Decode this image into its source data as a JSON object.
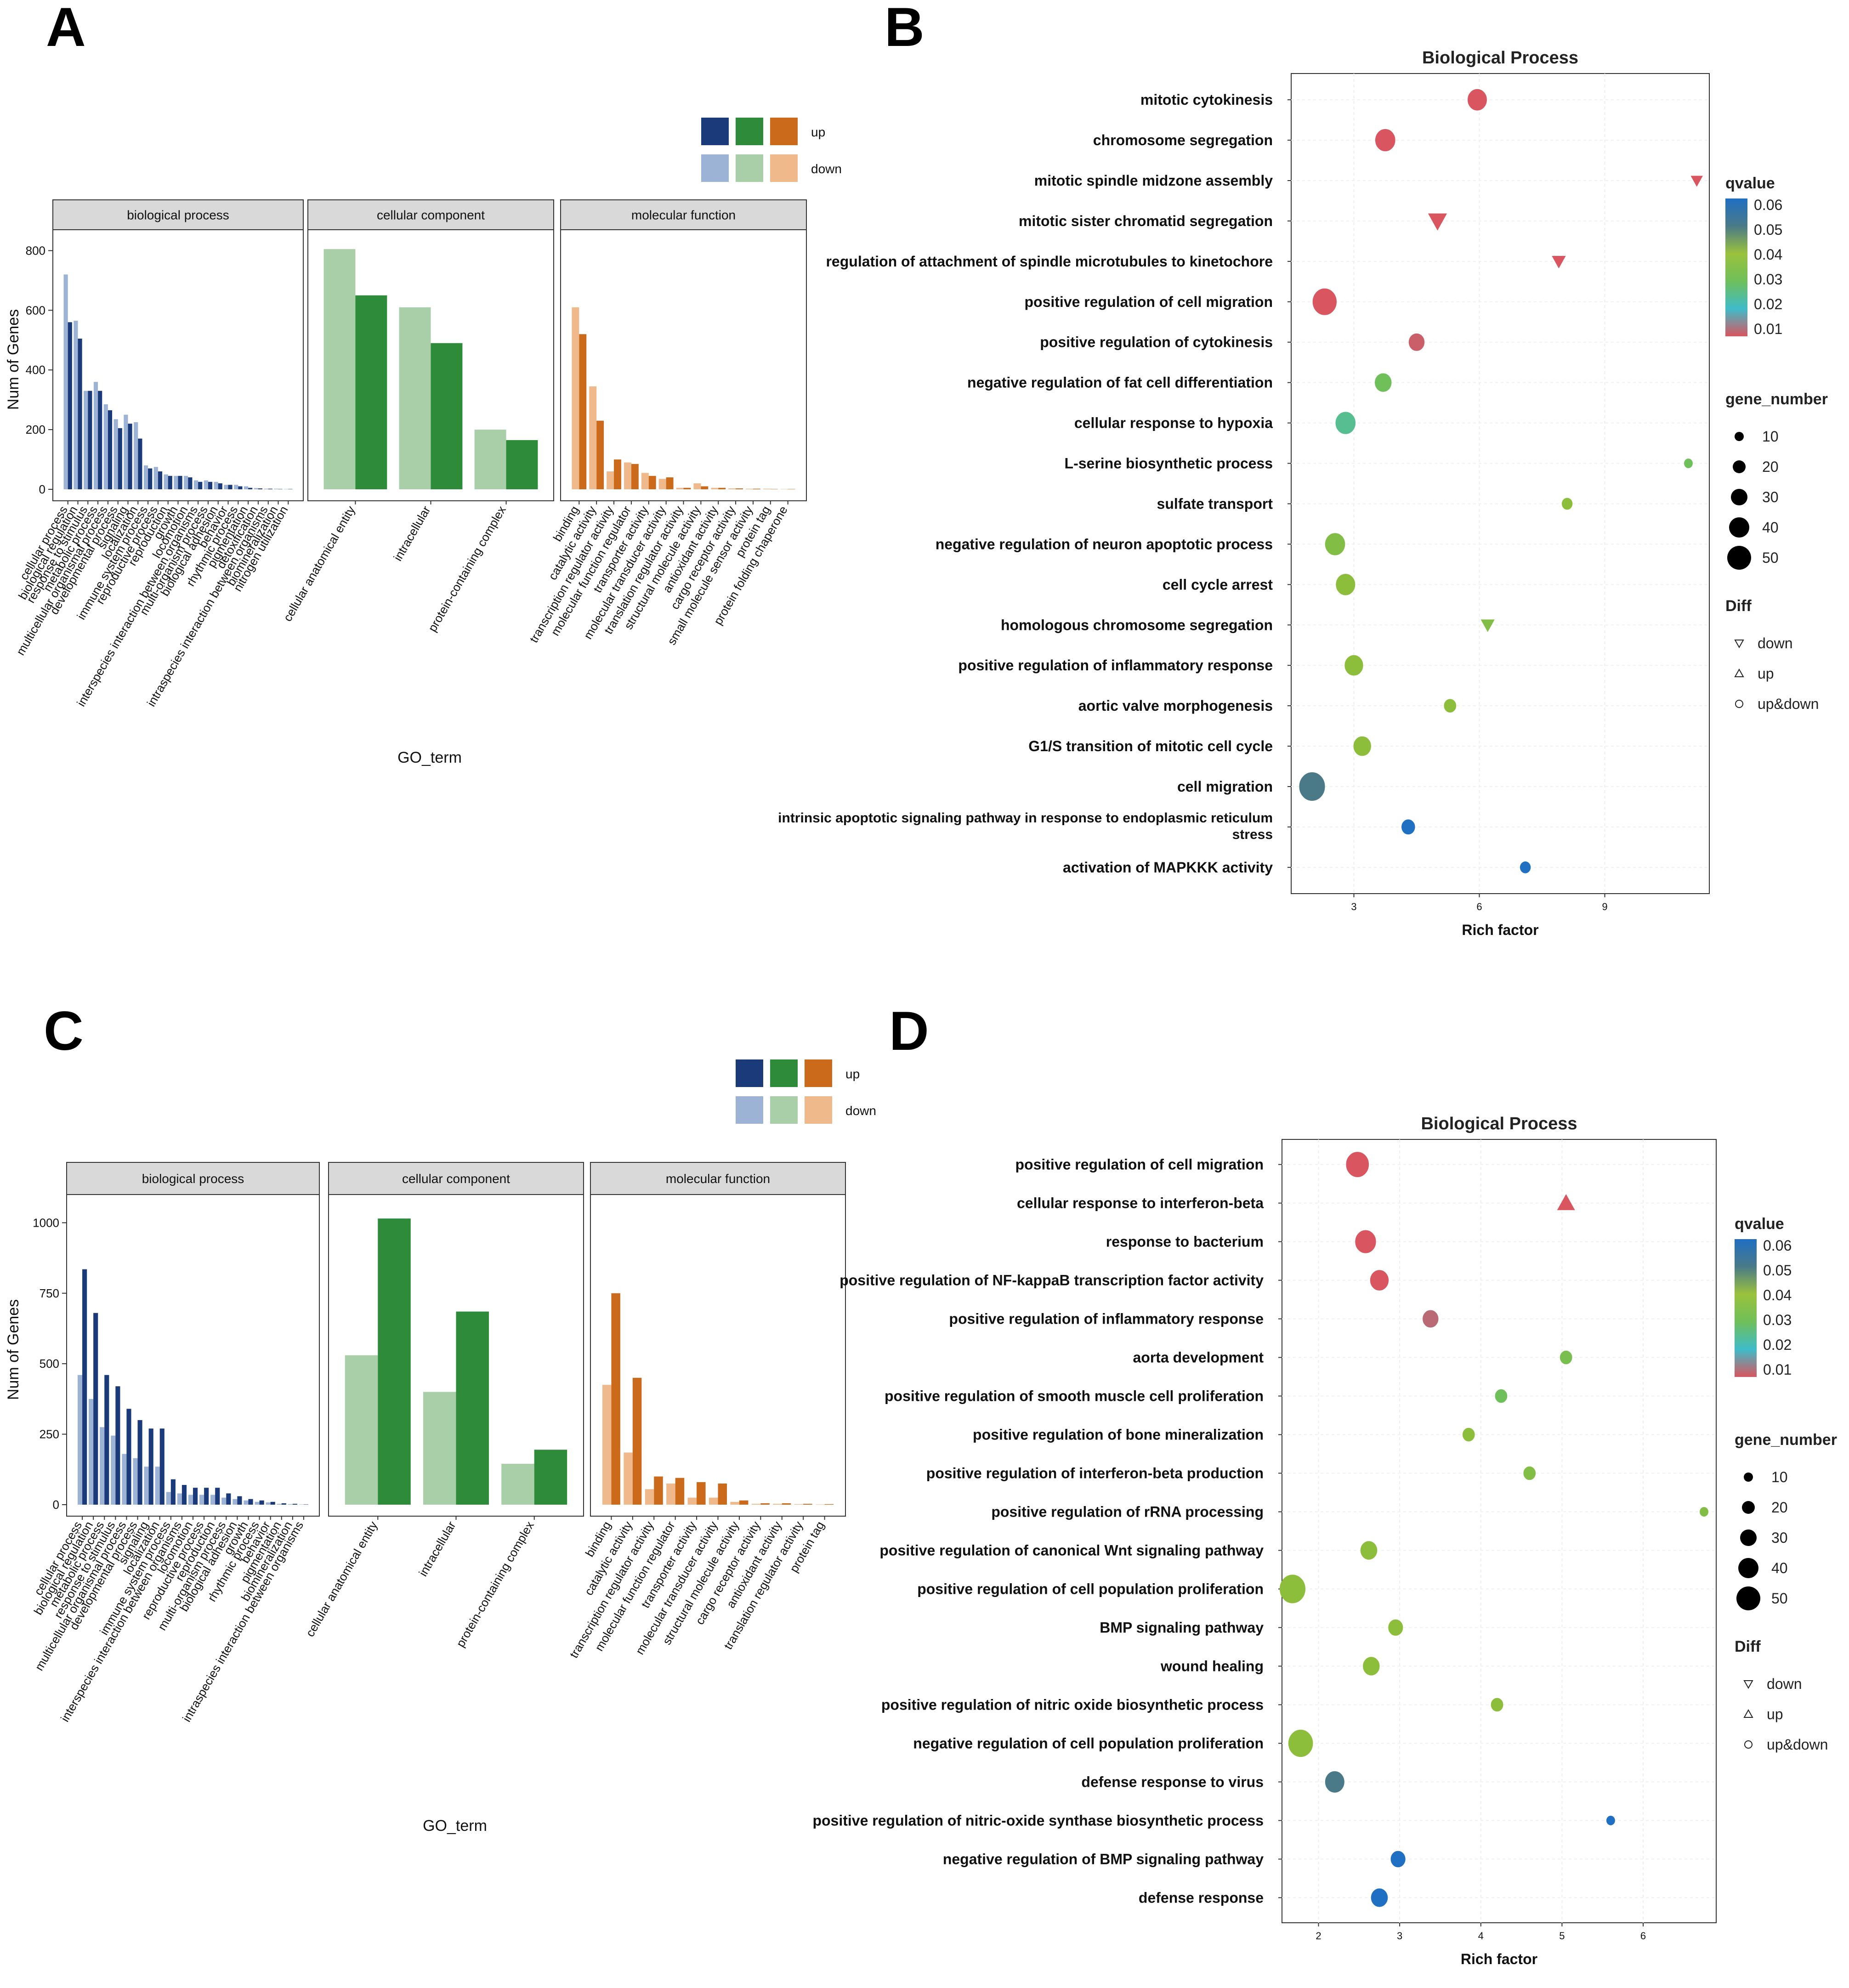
{
  "panels": {
    "A": {
      "letter": "A",
      "legend": {
        "up": "up",
        "down": "down"
      },
      "ylabel": "Num of Genes",
      "xlabel": "GO_term",
      "yticks": [
        0,
        200,
        400,
        600,
        800
      ],
      "ylim": [
        0,
        870
      ],
      "facets": [
        {
          "title": "biological process",
          "color_up": "#1a3a7a",
          "color_down": "#9db3d6",
          "categories": [
            "cellular process",
            "biological regulation",
            "response to stimulus",
            "metabolic process",
            "multicellular organismal process",
            "developmental process",
            "signaling",
            "localization",
            "immune system process",
            "reproductive process",
            "reproduction",
            "growth",
            "locomotion",
            "interspecies interaction between organisms",
            "multi-organism process",
            "biological adhesion",
            "behavior",
            "rhythmic process",
            "pigmentation",
            "detoxification",
            "intraspecies interaction between organisms",
            "biomineralization",
            "nitrogen utilization"
          ],
          "up": [
            560,
            505,
            330,
            330,
            265,
            205,
            220,
            170,
            70,
            60,
            45,
            45,
            40,
            25,
            25,
            20,
            15,
            10,
            5,
            3,
            2,
            1,
            1
          ],
          "down": [
            720,
            565,
            330,
            360,
            285,
            235,
            250,
            225,
            80,
            75,
            50,
            45,
            45,
            30,
            30,
            25,
            15,
            15,
            10,
            4,
            2,
            2,
            1
          ]
        },
        {
          "title": "cellular component",
          "color_up": "#2e8b3a",
          "color_down": "#a8cfa8",
          "categories": [
            "cellular anatomical entity",
            "intracellular",
            "protein-containing complex"
          ],
          "up": [
            650,
            490,
            165
          ],
          "down": [
            805,
            610,
            200
          ]
        },
        {
          "title": "molecular function",
          "color_up": "#cc6a1c",
          "color_down": "#f0b98c",
          "categories": [
            "binding",
            "catalytic activity",
            "transcription regulator activity",
            "molecular function regulator",
            "transporter activity",
            "molecular transducer activity",
            "translation regulator activity",
            "structural molecule activity",
            "antioxidant activity",
            "cargo receptor activity",
            "small molecule sensor activity",
            "protein tag",
            "protein folding chaperone"
          ],
          "up": [
            520,
            230,
            100,
            85,
            45,
            40,
            5,
            10,
            5,
            3,
            2,
            1,
            1
          ],
          "down": [
            610,
            345,
            60,
            90,
            55,
            35,
            5,
            20,
            5,
            3,
            2,
            2,
            1
          ]
        }
      ]
    },
    "B": {
      "letter": "B",
      "title": "Biological Process",
      "xlabel": "Rich factor",
      "xticks": [
        3,
        6,
        9
      ],
      "xlim": [
        1.5,
        11.5
      ],
      "terms": [
        {
          "label": "mitotic cytokinesis",
          "x": 5.95,
          "q": 0.005,
          "n": 20,
          "diff": "up&down"
        },
        {
          "label": "chromosome segregation",
          "x": 3.75,
          "q": 0.006,
          "n": 22,
          "diff": "up&down"
        },
        {
          "label": "mitotic spindle midzone assembly",
          "x": 11.2,
          "q": 0.008,
          "n": 4,
          "diff": "down"
        },
        {
          "label": "mitotic sister chromatid segregation",
          "x": 5.0,
          "q": 0.005,
          "n": 14,
          "diff": "down"
        },
        {
          "label": "regulation of attachment of spindle microtubules to kinetochore",
          "x": 7.9,
          "q": 0.008,
          "n": 6,
          "diff": "down"
        },
        {
          "label": "positive regulation of cell migration",
          "x": 2.3,
          "q": 0.009,
          "n": 34,
          "diff": "up&down"
        },
        {
          "label": "positive regulation of cytokinesis",
          "x": 4.5,
          "q": 0.011,
          "n": 12,
          "diff": "up&down"
        },
        {
          "label": "negative regulation of fat cell differentiation",
          "x": 3.7,
          "q": 0.03,
          "n": 14,
          "diff": "up&down"
        },
        {
          "label": "cellular response to hypoxia",
          "x": 2.8,
          "q": 0.025,
          "n": 22,
          "diff": "up&down"
        },
        {
          "label": "L-serine biosynthetic process",
          "x": 11.0,
          "q": 0.03,
          "n": 2,
          "diff": "up&down"
        },
        {
          "label": "sulfate transport",
          "x": 8.1,
          "q": 0.045,
          "n": 4,
          "diff": "up&down"
        },
        {
          "label": "negative regulation of neuron apoptotic process",
          "x": 2.55,
          "q": 0.04,
          "n": 22,
          "diff": "up&down"
        },
        {
          "label": "cell cycle arrest",
          "x": 2.8,
          "q": 0.045,
          "n": 20,
          "diff": "up&down"
        },
        {
          "label": "homologous chromosome segregation",
          "x": 6.2,
          "q": 0.04,
          "n": 6,
          "diff": "down"
        },
        {
          "label": "positive regulation of inflammatory response",
          "x": 3.0,
          "q": 0.045,
          "n": 18,
          "diff": "up&down"
        },
        {
          "label": "aortic valve morphogenesis",
          "x": 5.3,
          "q": 0.045,
          "n": 6,
          "diff": "up&down"
        },
        {
          "label": "G1/S transition of mitotic cell cycle",
          "x": 3.2,
          "q": 0.045,
          "n": 16,
          "diff": "up&down"
        },
        {
          "label": "cell migration",
          "x": 2.0,
          "q": 0.05,
          "n": 40,
          "diff": "up&down"
        },
        {
          "label": "intrinsic apoptotic signaling pathway in response to endoplasmic reticulum stress",
          "x": 4.3,
          "q": 0.06,
          "n": 8,
          "diff": "up&down"
        },
        {
          "label": "activation of MAPKKK activity",
          "x": 7.1,
          "q": 0.06,
          "n": 4,
          "diff": "up&down"
        }
      ]
    },
    "C": {
      "letter": "C",
      "legend": {
        "up": "up",
        "down": "down"
      },
      "ylabel": "Num of Genes",
      "xlabel": "GO_term",
      "yticks": [
        0,
        250,
        500,
        750,
        1000
      ],
      "ylim": [
        0,
        1100
      ],
      "facets": [
        {
          "title": "biological process",
          "color_up": "#1a3a7a",
          "color_down": "#9db3d6",
          "categories": [
            "cellular process",
            "biological regulation",
            "metabolic process",
            "response to stimulus",
            "multicellular organismal process",
            "developmental process",
            "signaling",
            "localization",
            "immune system process",
            "interspecies interaction between organisms",
            "locomotion",
            "reproductive process",
            "reproduction",
            "multi-organism process",
            "biological adhesion",
            "growth",
            "rhythmic process",
            "behavior",
            "pigmentation",
            "biomineralization",
            "intraspecies interaction between organisms"
          ],
          "up": [
            835,
            680,
            460,
            420,
            340,
            300,
            270,
            270,
            90,
            70,
            60,
            60,
            60,
            40,
            30,
            20,
            15,
            10,
            5,
            3,
            1
          ],
          "down": [
            460,
            375,
            275,
            245,
            180,
            165,
            135,
            135,
            45,
            40,
            35,
            35,
            35,
            25,
            20,
            15,
            10,
            8,
            3,
            2,
            1
          ]
        },
        {
          "title": "cellular component",
          "color_up": "#2e8b3a",
          "color_down": "#a8cfa8",
          "categories": [
            "cellular anatomical entity",
            "intracellular",
            "protein-containing complex"
          ],
          "up": [
            1015,
            685,
            195
          ],
          "down": [
            530,
            400,
            145
          ]
        },
        {
          "title": "molecular function",
          "color_up": "#cc6a1c",
          "color_down": "#f0b98c",
          "categories": [
            "binding",
            "catalytic activity",
            "transcription regulator activity",
            "molecular function regulator",
            "transporter activity",
            "molecular transducer activity",
            "structural molecule activity",
            "cargo receptor activity",
            "antioxidant activity",
            "translation regulator activity",
            "protein tag"
          ],
          "up": [
            750,
            450,
            100,
            95,
            80,
            75,
            15,
            5,
            5,
            3,
            2
          ],
          "down": [
            425,
            185,
            55,
            75,
            25,
            25,
            10,
            3,
            3,
            2,
            1
          ]
        }
      ]
    },
    "D": {
      "letter": "D",
      "title": "Biological Process",
      "xlabel": "Rich factor",
      "xticks": [
        2,
        3,
        4,
        5,
        6
      ],
      "xlim": [
        1.55,
        6.9
      ],
      "terms": [
        {
          "label": "positive regulation of cell migration",
          "x": 2.48,
          "q": 0.004,
          "n": 30,
          "diff": "up&down"
        },
        {
          "label": "cellular response to interferon-beta",
          "x": 5.05,
          "q": 0.004,
          "n": 12,
          "diff": "up"
        },
        {
          "label": "response to bacterium",
          "x": 2.58,
          "q": 0.006,
          "n": 24,
          "diff": "up&down"
        },
        {
          "label": "positive regulation of NF-kappaB transcription factor activity",
          "x": 2.75,
          "q": 0.006,
          "n": 18,
          "diff": "up&down"
        },
        {
          "label": "positive regulation of inflammatory response",
          "x": 3.38,
          "q": 0.012,
          "n": 12,
          "diff": "up&down"
        },
        {
          "label": "aorta development",
          "x": 5.05,
          "q": 0.035,
          "n": 6,
          "diff": "up&down"
        },
        {
          "label": "positive regulation of smooth muscle cell proliferation",
          "x": 4.25,
          "q": 0.03,
          "n": 6,
          "diff": "up&down"
        },
        {
          "label": "positive regulation of bone mineralization",
          "x": 3.85,
          "q": 0.045,
          "n": 6,
          "diff": "up&down"
        },
        {
          "label": "positive regulation of interferon-beta production",
          "x": 4.6,
          "q": 0.04,
          "n": 6,
          "diff": "up&down"
        },
        {
          "label": "positive regulation of rRNA processing",
          "x": 6.75,
          "q": 0.04,
          "n": 2,
          "diff": "up&down"
        },
        {
          "label": "positive regulation of canonical Wnt signaling pathway",
          "x": 2.62,
          "q": 0.045,
          "n": 14,
          "diff": "up&down"
        },
        {
          "label": "positive regulation of cell population proliferation",
          "x": 1.68,
          "q": 0.045,
          "n": 40,
          "diff": "up&down"
        },
        {
          "label": "BMP signaling pathway",
          "x": 2.95,
          "q": 0.045,
          "n": 10,
          "diff": "up&down"
        },
        {
          "label": "wound healing",
          "x": 2.65,
          "q": 0.045,
          "n": 14,
          "diff": "up&down"
        },
        {
          "label": "positive regulation of nitric oxide biosynthetic process",
          "x": 4.2,
          "q": 0.045,
          "n": 6,
          "diff": "up&down"
        },
        {
          "label": "negative regulation of cell population proliferation",
          "x": 1.78,
          "q": 0.045,
          "n": 36,
          "diff": "up&down"
        },
        {
          "label": "defense response to virus",
          "x": 2.2,
          "q": 0.05,
          "n": 20,
          "diff": "up&down"
        },
        {
          "label": "positive regulation of nitric-oxide synthase biosynthetic process",
          "x": 5.6,
          "q": 0.06,
          "n": 2,
          "diff": "up&down"
        },
        {
          "label": "negative regulation of BMP signaling pathway",
          "x": 2.98,
          "q": 0.06,
          "n": 10,
          "diff": "up&down"
        },
        {
          "label": "defense response",
          "x": 2.75,
          "q": 0.06,
          "n": 14,
          "diff": "up&down"
        }
      ]
    }
  },
  "bubble_legend": {
    "qvalue_title": "qvalue",
    "qvalue_ticks": [
      "0.06",
      "0.05",
      "0.04",
      "0.03",
      "0.02",
      "0.01"
    ],
    "gene_title": "gene_number",
    "gene_ticks": [
      "10",
      "20",
      "30",
      "40",
      "50"
    ],
    "diff_title": "Diff",
    "diff_items": [
      "down",
      "up",
      "up&down"
    ]
  },
  "chart_data": [
    {
      "type": "bar",
      "title": "A",
      "xlabel": "GO_term",
      "ylabel": "Num of Genes",
      "ylim": [
        0,
        870
      ],
      "legend": [
        "up",
        "down"
      ],
      "facets": [
        "biological process",
        "cellular component",
        "molecular function"
      ],
      "note": "grouped bars per GO term; values in panels.A.facets"
    },
    {
      "type": "scatter",
      "title": "Biological Process",
      "xlabel": "Rich factor",
      "ylabel": "",
      "xlim": [
        1.5,
        11.5
      ],
      "size": "gene_number",
      "color": "qvalue",
      "shape": "Diff",
      "note": "terms in panels.B.terms"
    },
    {
      "type": "bar",
      "title": "C",
      "xlabel": "GO_term",
      "ylabel": "Num of Genes",
      "ylim": [
        0,
        1100
      ],
      "legend": [
        "up",
        "down"
      ],
      "facets": [
        "biological process",
        "cellular component",
        "molecular function"
      ],
      "note": "grouped bars per GO term; values in panels.C.facets"
    },
    {
      "type": "scatter",
      "title": "Biological Process",
      "xlabel": "Rich factor",
      "ylabel": "",
      "xlim": [
        1.55,
        6.9
      ],
      "size": "gene_number",
      "color": "qvalue",
      "shape": "Diff",
      "note": "terms in panels.D.terms"
    }
  ]
}
